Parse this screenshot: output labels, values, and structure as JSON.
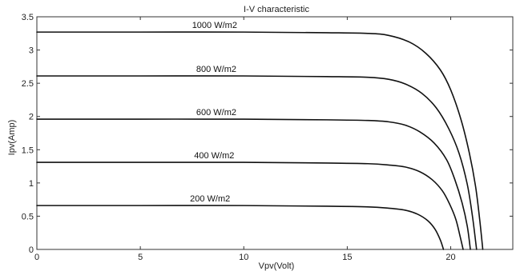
{
  "chart_data": {
    "type": "line",
    "title": "I-V characteristic",
    "xlabel": "Vpv(Volt)",
    "ylabel": "Ipv(Amp)",
    "xlim": [
      0,
      23
    ],
    "ylim": [
      0,
      3.5
    ],
    "xticks": [
      0,
      5,
      10,
      15,
      20
    ],
    "xtick_labels": [
      "0",
      "5",
      "10",
      "15",
      "20"
    ],
    "yticks": [
      0,
      0.5,
      1,
      1.5,
      2,
      2.5,
      3,
      3.5
    ],
    "ytick_labels": [
      "0",
      "0.5",
      "1",
      "1.5",
      "2",
      "2.5",
      "3",
      "3.5"
    ],
    "grid": false,
    "line_color": "#111111",
    "series": [
      {
        "name": "1000 W/m2",
        "label": "1000 W/m2",
        "x": [
          0,
          5,
          10,
          14,
          16,
          17,
          18,
          18.8,
          19.5,
          20.0,
          20.5,
          20.9,
          21.2,
          21.4,
          21.55
        ],
        "y": [
          3.27,
          3.27,
          3.27,
          3.26,
          3.25,
          3.22,
          3.12,
          2.95,
          2.7,
          2.4,
          1.95,
          1.45,
          0.95,
          0.45,
          0.0
        ]
      },
      {
        "name": "800 W/m2",
        "label": "800 W/m2",
        "x": [
          0,
          5,
          10,
          14,
          16,
          17,
          17.8,
          18.6,
          19.3,
          19.9,
          20.4,
          20.8,
          21.05,
          21.25
        ],
        "y": [
          2.61,
          2.61,
          2.61,
          2.6,
          2.59,
          2.56,
          2.49,
          2.35,
          2.13,
          1.82,
          1.45,
          0.98,
          0.5,
          0.0
        ]
      },
      {
        "name": "600 W/m2",
        "label": "600 W/m2",
        "x": [
          0,
          5,
          10,
          14,
          16,
          17,
          17.8,
          18.5,
          19.2,
          19.8,
          20.2,
          20.55,
          20.8,
          20.95
        ],
        "y": [
          1.96,
          1.96,
          1.96,
          1.95,
          1.94,
          1.92,
          1.87,
          1.77,
          1.6,
          1.35,
          1.05,
          0.7,
          0.35,
          0.0
        ]
      },
      {
        "name": "400 W/m2",
        "label": "400 W/m2",
        "x": [
          0,
          5,
          10,
          14,
          16,
          17,
          17.8,
          18.5,
          19.1,
          19.6,
          19.95,
          20.25,
          20.45,
          20.6
        ],
        "y": [
          1.31,
          1.31,
          1.31,
          1.3,
          1.29,
          1.27,
          1.24,
          1.17,
          1.05,
          0.88,
          0.68,
          0.45,
          0.2,
          0.0
        ]
      },
      {
        "name": "200 W/m2",
        "label": "200 W/m2",
        "x": [
          0,
          5,
          10,
          14,
          16,
          17,
          17.8,
          18.4,
          18.9,
          19.25,
          19.5,
          19.65
        ],
        "y": [
          0.66,
          0.66,
          0.66,
          0.65,
          0.64,
          0.62,
          0.59,
          0.53,
          0.43,
          0.3,
          0.14,
          0.0
        ]
      }
    ],
    "annotations": [
      {
        "text": "1000 W/m2",
        "x": 7.5,
        "y": 3.33
      },
      {
        "text": "800 W/m2",
        "x": 7.7,
        "y": 2.67
      },
      {
        "text": "600 W/m2",
        "x": 7.7,
        "y": 2.02
      },
      {
        "text": "400 W/m2",
        "x": 7.6,
        "y": 1.37
      },
      {
        "text": "200 W/m2",
        "x": 7.4,
        "y": 0.72
      }
    ]
  }
}
